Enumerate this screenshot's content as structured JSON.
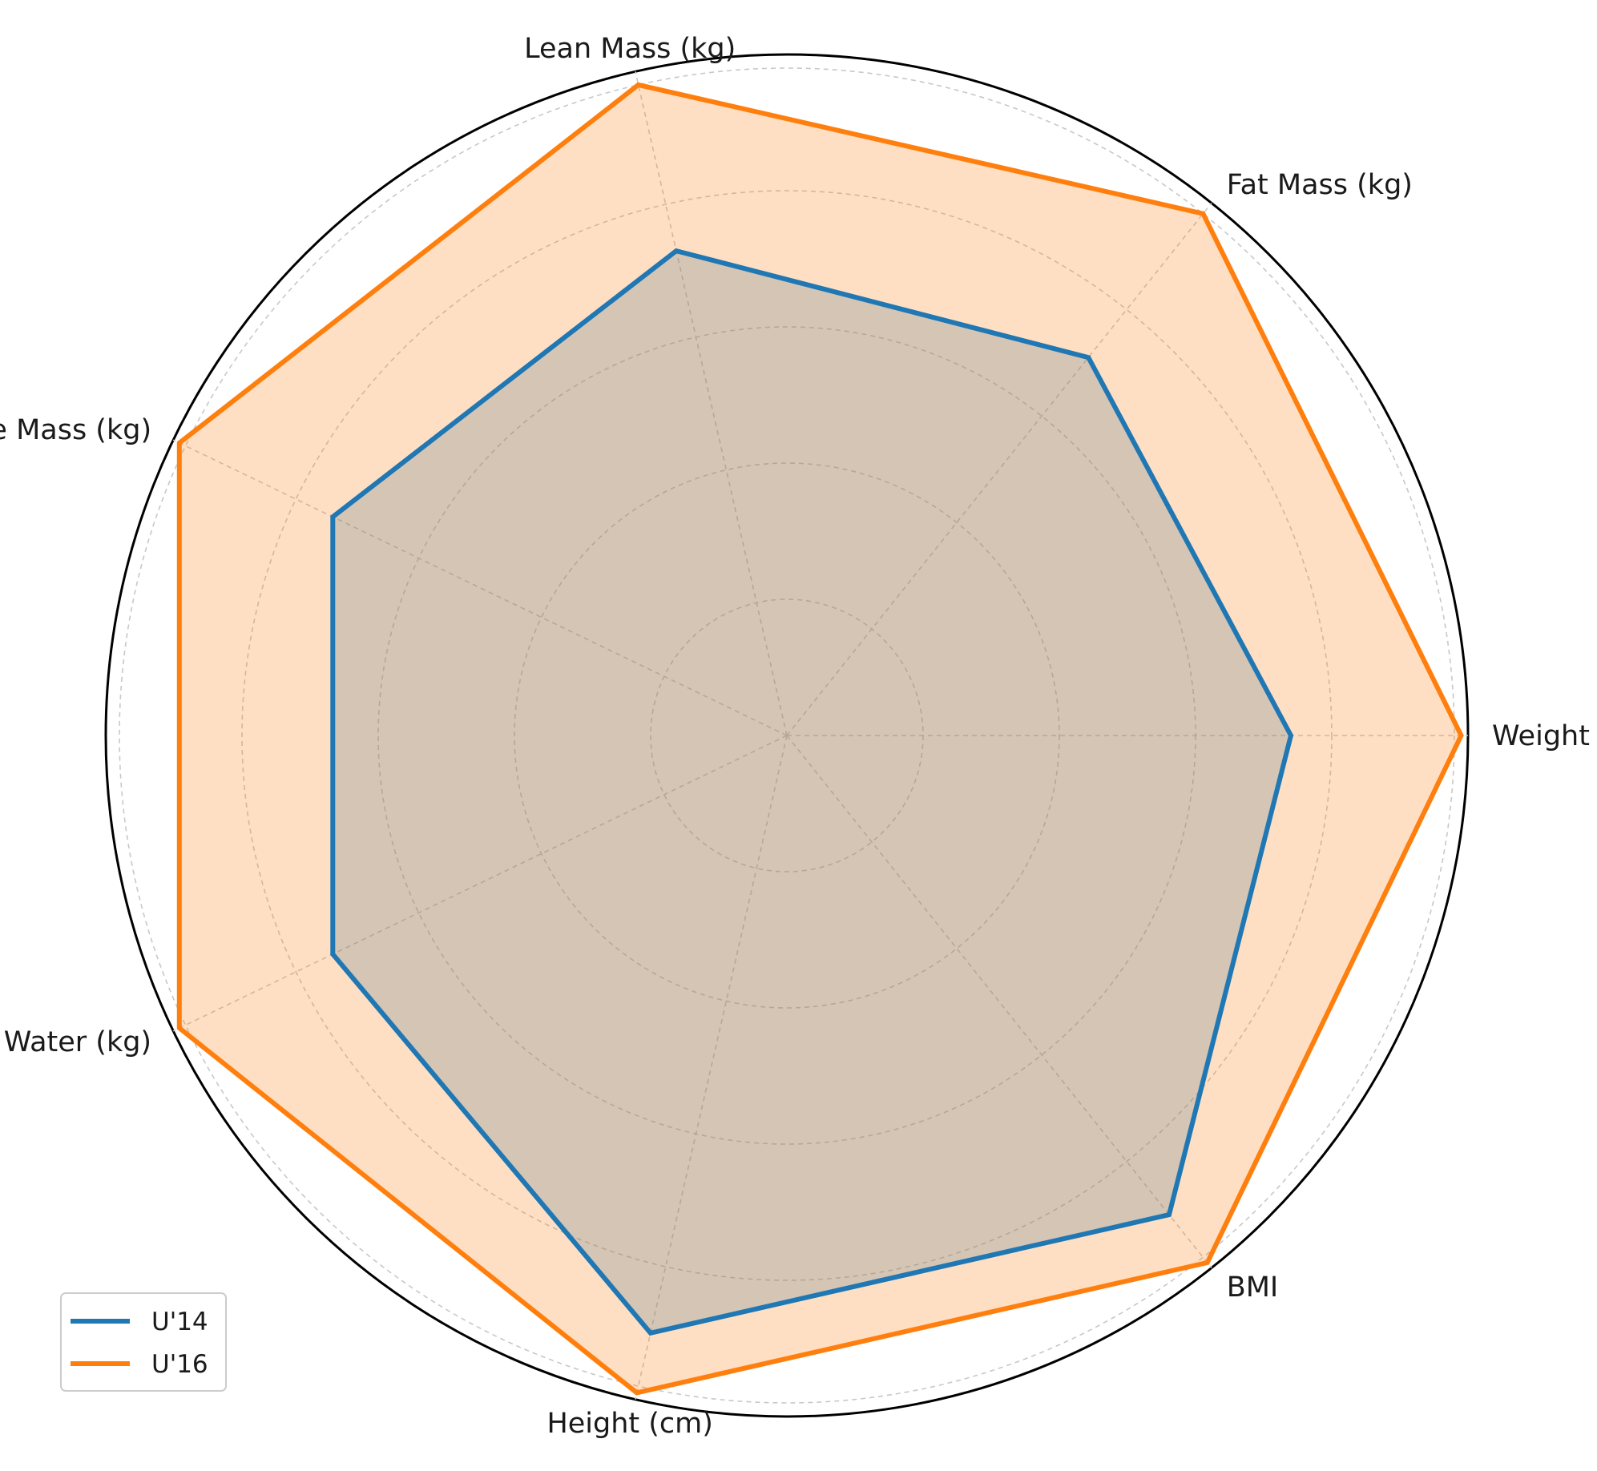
{
  "chart_data": {
    "type": "radar",
    "axes": [
      "Weight (kg)",
      "Fat Mass (kg)",
      "Lean Mass (kg)",
      "Muscle Mass (kg)",
      "Water (kg)",
      "Height (cm)",
      "BMI"
    ],
    "scale_max": 1.0,
    "rings": [
      0.2,
      0.4,
      0.6,
      0.8,
      0.98
    ],
    "grid": true,
    "series": [
      {
        "name": "U'14",
        "values": [
          0.74,
          0.71,
          0.73,
          0.74,
          0.74,
          0.9,
          0.9
        ],
        "line_color": "#1f77b4",
        "fill_color": "#1f77b4"
      },
      {
        "name": "U'16",
        "values": [
          0.99,
          0.98,
          0.98,
          0.99,
          0.99,
          0.99,
          0.99
        ],
        "line_color": "#ff7f0e",
        "fill_color": "#ff7f0e"
      }
    ],
    "legend": {
      "placement": "bottom-left",
      "entries": [
        "U'14",
        "U'16"
      ]
    }
  }
}
